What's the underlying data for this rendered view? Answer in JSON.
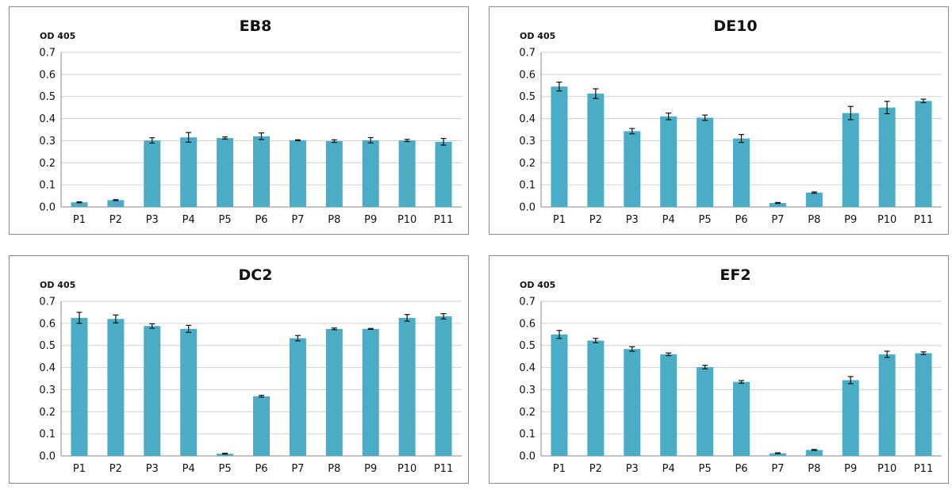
{
  "colors": {
    "bar": "#4bacc6",
    "grid": "#d0d0d0",
    "axis": "#8a8a8a"
  },
  "chart_data": [
    {
      "type": "bar",
      "title": "EB8",
      "ylabel": "OD 405",
      "xlabel": "",
      "ylim": [
        0,
        0.7
      ],
      "yticks": [
        "0.0",
        "0.1",
        "0.2",
        "0.3",
        "0.4",
        "0.5",
        "0.6",
        "0.7"
      ],
      "grid": true,
      "categories": [
        "P1",
        "P2",
        "P3",
        "P4",
        "P5",
        "P6",
        "P7",
        "P8",
        "P9",
        "P10",
        "P11"
      ],
      "values": [
        0.021,
        0.031,
        0.301,
        0.315,
        0.312,
        0.32,
        0.302,
        0.298,
        0.302,
        0.301,
        0.295
      ],
      "errors": [
        0.002,
        0.002,
        0.012,
        0.022,
        0.005,
        0.015,
        0.002,
        0.006,
        0.012,
        0.005,
        0.015
      ]
    },
    {
      "type": "bar",
      "title": "DE10",
      "ylabel": "OD 405",
      "xlabel": "",
      "ylim": [
        0,
        0.7
      ],
      "yticks": [
        "0.0",
        "0.1",
        "0.2",
        "0.3",
        "0.4",
        "0.5",
        "0.6",
        "0.7"
      ],
      "grid": true,
      "categories": [
        "P1",
        "P2",
        "P3",
        "P4",
        "P5",
        "P6",
        "P7",
        "P8",
        "P9",
        "P10",
        "P11"
      ],
      "values": [
        0.545,
        0.513,
        0.343,
        0.41,
        0.404,
        0.31,
        0.018,
        0.065,
        0.425,
        0.45,
        0.48
      ],
      "errors": [
        0.02,
        0.022,
        0.012,
        0.015,
        0.012,
        0.018,
        0.002,
        0.003,
        0.03,
        0.028,
        0.008
      ]
    },
    {
      "type": "bar",
      "title": "DC2",
      "ylabel": "OD 405",
      "xlabel": "",
      "ylim": [
        0,
        0.7
      ],
      "yticks": [
        "0.0",
        "0.1",
        "0.2",
        "0.3",
        "0.4",
        "0.5",
        "0.6",
        "0.7"
      ],
      "grid": true,
      "categories": [
        "P1",
        "P2",
        "P3",
        "P4",
        "P5",
        "P6",
        "P7",
        "P8",
        "P9",
        "P10",
        "P11"
      ],
      "values": [
        0.625,
        0.62,
        0.588,
        0.575,
        0.01,
        0.27,
        0.533,
        0.575,
        0.575,
        0.625,
        0.632
      ],
      "errors": [
        0.025,
        0.018,
        0.01,
        0.016,
        0.002,
        0.004,
        0.012,
        0.004,
        0.002,
        0.015,
        0.012
      ]
    },
    {
      "type": "bar",
      "title": "EF2",
      "ylabel": "OD 405",
      "xlabel": "",
      "ylim": [
        0,
        0.7
      ],
      "yticks": [
        "0.0",
        "0.1",
        "0.2",
        "0.3",
        "0.4",
        "0.5",
        "0.6",
        "0.7"
      ],
      "grid": true,
      "categories": [
        "P1",
        "P2",
        "P3",
        "P4",
        "P5",
        "P6",
        "P7",
        "P8",
        "P9",
        "P10",
        "P11"
      ],
      "values": [
        0.55,
        0.522,
        0.484,
        0.46,
        0.402,
        0.335,
        0.012,
        0.027,
        0.343,
        0.46,
        0.465
      ],
      "errors": [
        0.018,
        0.01,
        0.01,
        0.006,
        0.008,
        0.006,
        0.002,
        0.002,
        0.016,
        0.014,
        0.006
      ]
    }
  ]
}
